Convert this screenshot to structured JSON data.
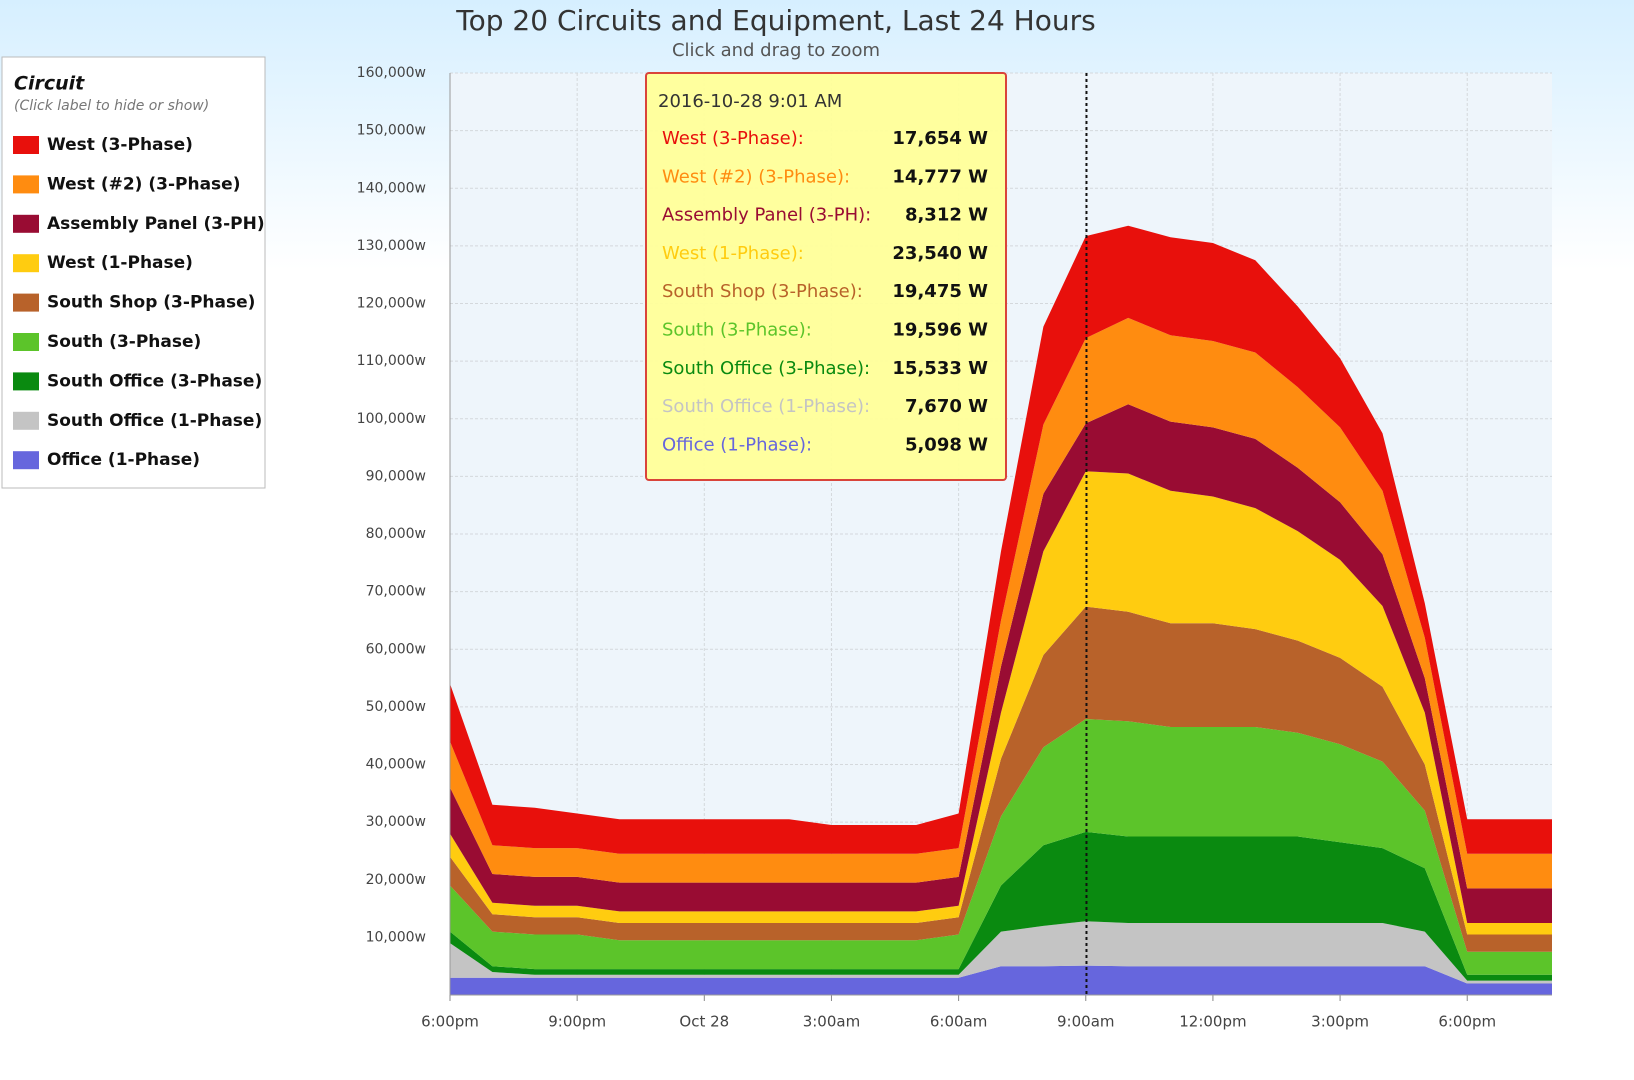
{
  "chart_data": {
    "type": "area",
    "stacked": true,
    "title": "Top 20 Circuits and Equipment, Last 24 Hours",
    "subtitle": "Click and drag to zoom",
    "legend": {
      "title": "Circuit",
      "subtitle": "(Click label to hide or show)",
      "position": "left"
    },
    "grid": true,
    "x": [
      "2016-10-27T18:00",
      "2016-10-27T19:00",
      "2016-10-27T20:00",
      "2016-10-27T21:00",
      "2016-10-27T22:00",
      "2016-10-27T23:00",
      "2016-10-28T00:00",
      "2016-10-28T01:00",
      "2016-10-28T02:00",
      "2016-10-28T03:00",
      "2016-10-28T04:00",
      "2016-10-28T05:00",
      "2016-10-28T06:00",
      "2016-10-28T07:00",
      "2016-10-28T08:00",
      "2016-10-28T09:00",
      "2016-10-28T10:00",
      "2016-10-28T11:00",
      "2016-10-28T12:00",
      "2016-10-28T13:00",
      "2016-10-28T14:00",
      "2016-10-28T15:00",
      "2016-10-28T16:00",
      "2016-10-28T17:00",
      "2016-10-28T18:00",
      "2016-10-28T19:00",
      "2016-10-28T20:00"
    ],
    "xlim": [
      "2016-10-27T18:00",
      "2016-10-28T20:00"
    ],
    "xticks": [
      {
        "value": "2016-10-27T18:00",
        "label": "6:00pm"
      },
      {
        "value": "2016-10-27T21:00",
        "label": "9:00pm"
      },
      {
        "value": "2016-10-28T00:00",
        "label": "Oct 28"
      },
      {
        "value": "2016-10-28T03:00",
        "label": "3:00am"
      },
      {
        "value": "2016-10-28T06:00",
        "label": "6:00am"
      },
      {
        "value": "2016-10-28T09:00",
        "label": "9:00am"
      },
      {
        "value": "2016-10-28T12:00",
        "label": "12:00pm"
      },
      {
        "value": "2016-10-28T15:00",
        "label": "3:00pm"
      },
      {
        "value": "2016-10-28T18:00",
        "label": "6:00pm"
      }
    ],
    "ylim": [
      0,
      160000
    ],
    "yticks": [
      {
        "value": 10000,
        "label": "10,000w"
      },
      {
        "value": 20000,
        "label": "20,000w"
      },
      {
        "value": 30000,
        "label": "30,000w"
      },
      {
        "value": 40000,
        "label": "40,000w"
      },
      {
        "value": 50000,
        "label": "50,000w"
      },
      {
        "value": 60000,
        "label": "60,000w"
      },
      {
        "value": 70000,
        "label": "70,000w"
      },
      {
        "value": 80000,
        "label": "80,000w"
      },
      {
        "value": 90000,
        "label": "90,000w"
      },
      {
        "value": 100000,
        "label": "100,000w"
      },
      {
        "value": 110000,
        "label": "110,000w"
      },
      {
        "value": 120000,
        "label": "120,000w"
      },
      {
        "value": 130000,
        "label": "130,000w"
      },
      {
        "value": 140000,
        "label": "140,000w"
      },
      {
        "value": 150000,
        "label": "150,000w"
      },
      {
        "value": 160000,
        "label": "160,000w"
      }
    ],
    "series": [
      {
        "name": "West (3-Phase)",
        "color": "#e8100c",
        "values": [
          10000,
          7000,
          7000,
          6000,
          6000,
          6000,
          6000,
          6000,
          6000,
          5000,
          5000,
          5000,
          6000,
          12000,
          17000,
          17700,
          16000,
          17000,
          17000,
          16000,
          14000,
          12000,
          10000,
          6000,
          6000,
          6000,
          6000
        ]
      },
      {
        "name": "West (#2) (3-Phase)",
        "color": "#ff8c10",
        "values": [
          8000,
          5000,
          5000,
          5000,
          5000,
          5000,
          5000,
          5000,
          5000,
          5000,
          5000,
          5000,
          5000,
          8000,
          12000,
          14800,
          15000,
          15000,
          15000,
          15000,
          14000,
          13000,
          11000,
          7000,
          6000,
          6000,
          6000
        ]
      },
      {
        "name": "Assembly Panel (3-PH)",
        "color": "#990c33",
        "values": [
          8000,
          5000,
          5000,
          5000,
          5000,
          5000,
          5000,
          5000,
          5000,
          5000,
          5000,
          5000,
          5000,
          8000,
          10000,
          8300,
          12000,
          12000,
          12000,
          12000,
          11000,
          10000,
          9000,
          6000,
          6000,
          6000,
          6000
        ]
      },
      {
        "name": "West (1-Phase)",
        "color": "#ffcc10",
        "values": [
          4000,
          2000,
          2000,
          2000,
          2000,
          2000,
          2000,
          2000,
          2000,
          2000,
          2000,
          2000,
          2000,
          8000,
          18000,
          23500,
          24000,
          23000,
          22000,
          21000,
          19000,
          17000,
          14000,
          9000,
          2000,
          2000,
          2000
        ]
      },
      {
        "name": "South Shop (3-Phase)",
        "color": "#b8622a",
        "values": [
          5000,
          3000,
          3000,
          3000,
          3000,
          3000,
          3000,
          3000,
          3000,
          3000,
          3000,
          3000,
          3000,
          10000,
          16000,
          19500,
          19000,
          18000,
          18000,
          17000,
          16000,
          15000,
          13000,
          8000,
          3000,
          3000,
          3000
        ]
      },
      {
        "name": "South (3-Phase)",
        "color": "#5cc42a",
        "values": [
          8000,
          6000,
          6000,
          6000,
          5000,
          5000,
          5000,
          5000,
          5000,
          5000,
          5000,
          5000,
          6000,
          12000,
          17000,
          19600,
          20000,
          19000,
          19000,
          19000,
          18000,
          17000,
          15000,
          10000,
          4000,
          4000,
          4000
        ]
      },
      {
        "name": "South Office (3-Phase)",
        "color": "#0a8a10",
        "values": [
          2000,
          1000,
          1000,
          1000,
          1000,
          1000,
          1000,
          1000,
          1000,
          1000,
          1000,
          1000,
          1000,
          8000,
          14000,
          15500,
          15000,
          15000,
          15000,
          15000,
          15000,
          14000,
          13000,
          11000,
          1000,
          1000,
          1000
        ]
      },
      {
        "name": "South Office (1-Phase)",
        "color": "#c4c4c4",
        "values": [
          6000,
          1000,
          500,
          500,
          500,
          500,
          500,
          500,
          500,
          500,
          500,
          500,
          500,
          6000,
          7000,
          7700,
          7500,
          7500,
          7500,
          7500,
          7500,
          7500,
          7500,
          6000,
          500,
          500,
          500
        ]
      },
      {
        "name": "Office (1-Phase)",
        "color": "#6666dd",
        "values": [
          3000,
          3000,
          3000,
          3000,
          3000,
          3000,
          3000,
          3000,
          3000,
          3000,
          3000,
          3000,
          3000,
          5000,
          5000,
          5100,
          5000,
          5000,
          5000,
          5000,
          5000,
          5000,
          5000,
          5000,
          2000,
          2000,
          2000
        ]
      }
    ],
    "tooltip": {
      "x": "2016-10-28T09:01",
      "title": "2016-10-28 9:01 AM",
      "names": [
        "West (3-Phase):",
        "West (#2) (3-Phase):",
        "Assembly Panel (3-PH):",
        "West (1-Phase):",
        "South Shop (3-Phase):",
        "South (3-Phase):",
        "South Office (3-Phase):",
        "South Office (1-Phase):",
        "Office (1-Phase):"
      ],
      "values": [
        17654,
        14777,
        8312,
        23540,
        19475,
        19596,
        15533,
        7670,
        5098
      ],
      "value_labels": [
        "17,654 W",
        "14,777 W",
        "8,312 W",
        "23,540 W",
        "19,475 W",
        "19,596 W",
        "15,533 W",
        "7,670 W",
        "5,098 W"
      ]
    }
  }
}
